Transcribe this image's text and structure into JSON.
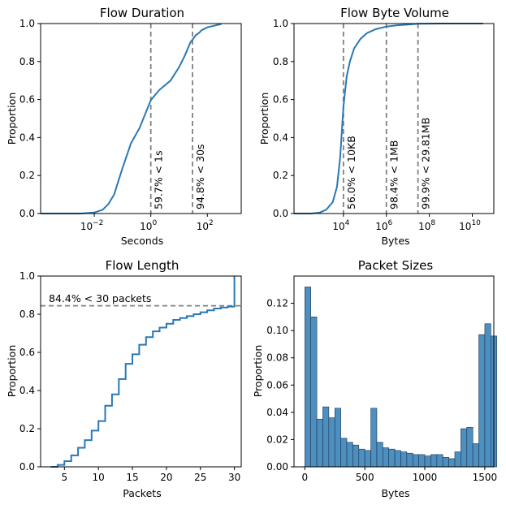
{
  "colors": {
    "line": "#2a78b4",
    "bar": "#4d8fbf",
    "ref": "#808080"
  },
  "chart_data": [
    {
      "type": "line",
      "title": "Flow Duration",
      "xlabel": "Seconds",
      "ylabel": "Proportion",
      "xscale": "log",
      "xlim_log10": [
        -3.9,
        3.2
      ],
      "ylim": [
        0,
        1.0
      ],
      "xticks": [
        {
          "log": -2,
          "base": "10",
          "exp": "−2"
        },
        {
          "log": 0,
          "base": "10",
          "exp": "0"
        },
        {
          "log": 2,
          "base": "10",
          "exp": "2"
        }
      ],
      "yticks": [
        "0.0",
        "0.2",
        "0.4",
        "0.6",
        "0.8",
        "1.0"
      ],
      "x_log10": [
        -3.7,
        -2.5,
        -2.0,
        -1.7,
        -1.5,
        -1.3,
        -1.0,
        -0.7,
        -0.4,
        0.0,
        0.3,
        0.7,
        1.0,
        1.2,
        1.4,
        1.6,
        1.7,
        1.8,
        2.0,
        2.5
      ],
      "y": [
        0.0,
        0.0,
        0.005,
        0.02,
        0.05,
        0.1,
        0.24,
        0.37,
        0.45,
        0.597,
        0.65,
        0.7,
        0.77,
        0.83,
        0.9,
        0.94,
        0.95,
        0.965,
        0.98,
        0.998
      ],
      "references": [
        {
          "x_log10": 0.0,
          "label": "59.7% < 1s"
        },
        {
          "x_log10": 1.477,
          "label": "94.8% < 30s"
        }
      ]
    },
    {
      "type": "line",
      "title": "Flow Byte Volume",
      "xlabel": "Bytes",
      "ylabel": "Proportion",
      "xscale": "log",
      "xlim_log10": [
        1.7,
        11.0
      ],
      "ylim": [
        0,
        1.0
      ],
      "xticks": [
        {
          "log": 4,
          "base": "10",
          "exp": "4"
        },
        {
          "log": 6,
          "base": "10",
          "exp": "6"
        },
        {
          "log": 8,
          "base": "10",
          "exp": "8"
        },
        {
          "log": 10,
          "base": "10",
          "exp": "10"
        }
      ],
      "yticks": [
        "0.0",
        "0.2",
        "0.4",
        "0.6",
        "0.8",
        "1.0"
      ],
      "x_log10": [
        2.5,
        2.9,
        3.2,
        3.5,
        3.7,
        3.85,
        4.0,
        4.15,
        4.3,
        4.5,
        4.8,
        5.1,
        5.5,
        6.0,
        6.5,
        7.0,
        7.5,
        8.5,
        10.5
      ],
      "y": [
        0.0,
        0.005,
        0.02,
        0.06,
        0.14,
        0.3,
        0.56,
        0.72,
        0.8,
        0.87,
        0.92,
        0.95,
        0.97,
        0.984,
        0.991,
        0.995,
        0.999,
        1.0,
        1.0
      ],
      "references": [
        {
          "x_log10": 4.0,
          "label": "56.0% < 10KB"
        },
        {
          "x_log10": 6.0,
          "label": "98.4% < 1MB"
        },
        {
          "x_log10": 7.47,
          "label": "99.9% < 29.81MB"
        }
      ]
    },
    {
      "type": "line",
      "step": true,
      "title": "Flow Length",
      "xlabel": "Packets",
      "ylabel": "Proportion",
      "xlim": [
        1.5,
        31
      ],
      "ylim": [
        0,
        1.0
      ],
      "xticks": [
        "5",
        "10",
        "15",
        "20",
        "25",
        "30"
      ],
      "yticks": [
        "0.0",
        "0.2",
        "0.4",
        "0.6",
        "0.8",
        "1.0"
      ],
      "x": [
        3,
        4,
        5,
        6,
        7,
        8,
        9,
        10,
        11,
        12,
        13,
        14,
        15,
        16,
        17,
        18,
        19,
        20,
        21,
        22,
        23,
        24,
        25,
        26,
        27,
        28,
        29,
        30
      ],
      "y": [
        0.0,
        0.01,
        0.03,
        0.06,
        0.1,
        0.14,
        0.19,
        0.24,
        0.32,
        0.38,
        0.46,
        0.54,
        0.59,
        0.64,
        0.68,
        0.71,
        0.73,
        0.75,
        0.77,
        0.78,
        0.79,
        0.8,
        0.81,
        0.82,
        0.83,
        0.835,
        0.84,
        0.844
      ],
      "final_jump": 1.0,
      "reference": {
        "y": 0.844,
        "label": "84.4% < 30 packets"
      }
    },
    {
      "type": "bar",
      "title": "Packet Sizes",
      "xlabel": "Bytes",
      "ylabel": "Proportion",
      "xlim": [
        -90,
        1575
      ],
      "ylim": [
        0,
        0.14
      ],
      "xticks": [
        "0",
        "500",
        "1000",
        "1500"
      ],
      "yticks": [
        "0.00",
        "0.02",
        "0.04",
        "0.06",
        "0.08",
        "0.10",
        "0.12"
      ],
      "bin_start": 0,
      "bin_width": 50,
      "values": [
        0.132,
        0.11,
        0.035,
        0.044,
        0.036,
        0.043,
        0.021,
        0.018,
        0.016,
        0.013,
        0.012,
        0.043,
        0.018,
        0.014,
        0.013,
        0.012,
        0.011,
        0.01,
        0.009,
        0.009,
        0.008,
        0.009,
        0.009,
        0.007,
        0.006,
        0.011,
        0.028,
        0.029,
        0.017,
        0.097,
        0.105,
        0.096
      ]
    }
  ]
}
